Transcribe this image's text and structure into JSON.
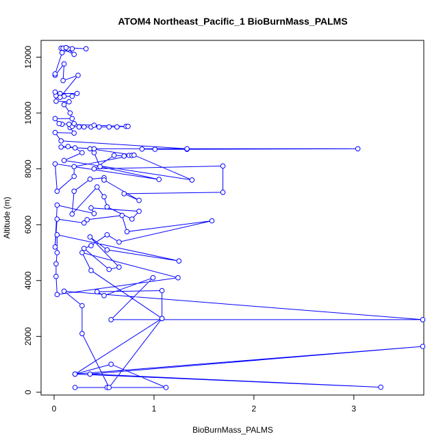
{
  "chart_data": {
    "type": "line",
    "title": "ATOM4 Northeast_Pacific_1 BioBurnMass_PALMS",
    "xlabel": "BioBurnMass_PALMS",
    "ylabel": "Altitude (m)",
    "xlim": [
      0,
      3.7
    ],
    "ylim": [
      -100,
      12600
    ],
    "x_ticks": [
      0,
      1,
      2,
      3
    ],
    "y_ticks": [
      0,
      2000,
      4000,
      6000,
      8000,
      10000,
      12000
    ],
    "x_tick_labels": [
      "0",
      "1",
      "2",
      "3"
    ],
    "y_tick_labels": [
      "0",
      "2000",
      "4000",
      "6000",
      "8000",
      "10000",
      "12000"
    ],
    "grid": false,
    "series_color": "#0000ff",
    "marker": "open-circle",
    "series": [
      {
        "points": [
          [
            0.21,
            170
          ],
          [
            0.53,
            170
          ],
          [
            1.12,
            170
          ],
          [
            0.57,
            1000
          ],
          [
            0.21,
            650
          ],
          [
            3.27,
            180
          ],
          [
            0.36,
            650
          ],
          [
            3.69,
            1640
          ],
          [
            0.21,
            650
          ],
          [
            1.08,
            2640
          ],
          [
            0.55,
            170
          ],
          [
            0.28,
            2100
          ],
          [
            0.28,
            3100
          ],
          [
            0.1,
            3620
          ],
          [
            3.69,
            2600
          ],
          [
            0.57,
            2600
          ],
          [
            0.99,
            4100
          ],
          [
            0.5,
            3460
          ],
          [
            0.43,
            3600
          ],
          [
            1.08,
            3640
          ],
          [
            1.08,
            2640
          ],
          [
            0.37,
            4360
          ],
          [
            0.28,
            5000
          ],
          [
            1.24,
            4100
          ],
          [
            0.03,
            3500
          ],
          [
            0.02,
            4150
          ],
          [
            0.02,
            4600
          ],
          [
            0.03,
            5000
          ],
          [
            0.03,
            5640
          ],
          [
            1.25,
            4700
          ],
          [
            0.53,
            5100
          ],
          [
            0.36,
            5560
          ],
          [
            0.65,
            4480
          ],
          [
            0.55,
            4400
          ],
          [
            0.3,
            5150
          ],
          [
            0.37,
            5250
          ],
          [
            0.53,
            5640
          ],
          [
            0.65,
            5380
          ],
          [
            1.58,
            6140
          ],
          [
            0.73,
            5750
          ],
          [
            0.68,
            6330
          ],
          [
            0.33,
            6180
          ],
          [
            0.3,
            6060
          ],
          [
            0.03,
            6200
          ],
          [
            0.01,
            5200
          ],
          [
            0.03,
            6700
          ],
          [
            0.4,
            6400
          ],
          [
            0.37,
            6600
          ],
          [
            0.85,
            6480
          ],
          [
            0.78,
            6200
          ],
          [
            0.53,
            6640
          ],
          [
            0.5,
            7000
          ],
          [
            0.43,
            7350
          ],
          [
            0.18,
            6380
          ],
          [
            0.2,
            7200
          ],
          [
            0.36,
            7630
          ],
          [
            0.5,
            7680
          ],
          [
            0.5,
            7600
          ],
          [
            0.85,
            6870
          ],
          [
            0.7,
            7110
          ],
          [
            1.69,
            7160
          ],
          [
            1.69,
            8100
          ],
          [
            0.4,
            8000
          ],
          [
            0.6,
            8480
          ],
          [
            0.7,
            8460
          ],
          [
            0.75,
            8480
          ],
          [
            0.78,
            8480
          ],
          [
            0.2,
            8080
          ],
          [
            0.2,
            7730
          ],
          [
            0.03,
            7200
          ],
          [
            0.01,
            8180
          ],
          [
            1.05,
            7620
          ],
          [
            0.46,
            8080
          ],
          [
            0.4,
            8580
          ],
          [
            0.36,
            8720
          ],
          [
            0.8,
            8490
          ],
          [
            1.38,
            7600
          ],
          [
            0.1,
            8300
          ],
          [
            0.28,
            8580
          ],
          [
            0.21,
            8750
          ],
          [
            0.14,
            8800
          ],
          [
            0.07,
            8780
          ],
          [
            0.4,
            8720
          ],
          [
            3.04,
            8720
          ],
          [
            1.33,
            8700
          ],
          [
            1.01,
            8700
          ],
          [
            0.88,
            8710
          ],
          [
            1.33,
            8720
          ],
          [
            0.07,
            9000
          ],
          [
            0.01,
            9300
          ],
          [
            0.2,
            9280
          ],
          [
            0.16,
            9480
          ],
          [
            0.18,
            9520
          ],
          [
            0.25,
            9500
          ],
          [
            0.3,
            9500
          ],
          [
            0.37,
            9500
          ],
          [
            0.45,
            9500
          ],
          [
            0.55,
            9500
          ],
          [
            0.63,
            9500
          ],
          [
            0.72,
            9520
          ],
          [
            0.74,
            9520
          ],
          [
            0.4,
            9560
          ],
          [
            0.15,
            9600
          ],
          [
            0.2,
            9620
          ],
          [
            0.08,
            9600
          ],
          [
            0.05,
            9620
          ],
          [
            0.01,
            9800
          ],
          [
            0.18,
            9800
          ],
          [
            0.16,
            10000
          ],
          [
            0.1,
            10300
          ],
          [
            0.15,
            10400
          ],
          [
            0.02,
            10420
          ],
          [
            0.02,
            10620
          ],
          [
            0.1,
            10600
          ],
          [
            0.18,
            10600
          ],
          [
            0.23,
            10700
          ],
          [
            0.06,
            10700
          ],
          [
            0.01,
            10750
          ],
          [
            0.06,
            10560
          ],
          [
            0.24,
            11350
          ],
          [
            0.09,
            11160
          ],
          [
            0.1,
            11760
          ],
          [
            0.01,
            11350
          ],
          [
            0.01,
            11400
          ],
          [
            0.08,
            12160
          ],
          [
            0.18,
            12300
          ],
          [
            0.14,
            12300
          ],
          [
            0.2,
            12100
          ],
          [
            0.07,
            12320
          ],
          [
            0.09,
            12320
          ],
          [
            0.12,
            12340
          ],
          [
            0.32,
            12300
          ]
        ]
      }
    ]
  }
}
